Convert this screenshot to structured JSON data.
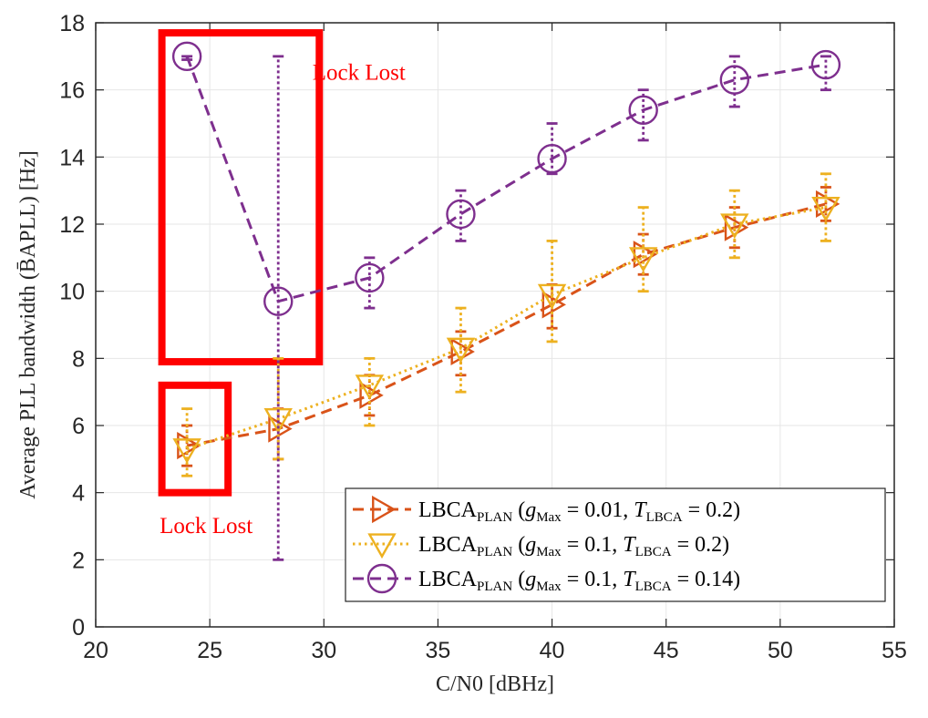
{
  "chart_data": {
    "type": "line",
    "xlabel": "C/N0 [dBHz]",
    "ylabel": "Average PLL bandwidth (B̄APLL) [Hz]",
    "xlim": [
      20,
      55
    ],
    "ylim": [
      0,
      18
    ],
    "xticks": [
      20,
      25,
      30,
      35,
      40,
      45,
      50,
      55
    ],
    "yticks": [
      0,
      2,
      4,
      6,
      8,
      10,
      12,
      14,
      16,
      18
    ],
    "grid": true,
    "legend_position": "bottom-right",
    "series": [
      {
        "name": "LBCA_PLAN (g_Max = 0.01, T_LBCA = 0.2)",
        "legend": {
          "base": "LBCA",
          "sub": "PLAN",
          "g": "g",
          "gsub": "Max",
          "gval": " = 0.01, ",
          "t": "T",
          "tsub": "LBCA",
          "tval": " = 0.2)"
        },
        "color": "#D95319",
        "marker": "triangle-right",
        "linestyle": "dashed",
        "x": [
          24,
          28,
          32,
          36,
          40,
          44,
          48,
          52
        ],
        "y": [
          5.4,
          5.9,
          6.9,
          8.2,
          9.6,
          11.1,
          11.9,
          12.6
        ],
        "err_low": [
          4.8,
          5.0,
          6.3,
          7.5,
          8.9,
          10.5,
          11.3,
          12.1
        ],
        "err_high": [
          6.0,
          6.5,
          7.5,
          8.8,
          10.2,
          11.7,
          12.5,
          13.1
        ]
      },
      {
        "name": "LBCA_PLAN (g_Max = 0.1, T_LBCA = 0.2)",
        "legend": {
          "base": "LBCA",
          "sub": "PLAN",
          "g": "g",
          "gsub": "Max",
          "gval": " = 0.1, ",
          "t": "T",
          "tsub": "LBCA",
          "tval": " = 0.2)"
        },
        "color": "#EDB120",
        "marker": "triangle-down",
        "linestyle": "dotted",
        "x": [
          24,
          28,
          32,
          36,
          40,
          44,
          48,
          52
        ],
        "y": [
          5.3,
          6.2,
          7.2,
          8.3,
          9.9,
          11.0,
          12.0,
          12.5
        ],
        "err_low": [
          4.5,
          5.0,
          6.0,
          7.0,
          8.5,
          10.0,
          11.0,
          11.5
        ],
        "err_high": [
          6.5,
          8.0,
          8.0,
          9.5,
          11.5,
          12.5,
          13.0,
          13.5
        ]
      },
      {
        "name": "LBCA_PLAN (g_Max = 0.1, T_LBCA = 0.14)",
        "legend": {
          "base": "LBCA",
          "sub": "PLAN",
          "g": "g",
          "gsub": "Max",
          "gval": " = 0.1, ",
          "t": "T",
          "tsub": "LBCA",
          "tval": " = 0.14)"
        },
        "color": "#7E2F8E",
        "marker": "circle",
        "linestyle": "dashed",
        "x": [
          24,
          28,
          32,
          36,
          40,
          44,
          48,
          52
        ],
        "y": [
          17.0,
          9.7,
          10.4,
          12.3,
          13.95,
          15.4,
          16.3,
          16.75
        ],
        "err_low": [
          16.9,
          2.0,
          9.5,
          11.5,
          13.5,
          14.5,
          15.5,
          16.0
        ],
        "err_high": [
          17.0,
          17.0,
          11.0,
          13.0,
          15.0,
          16.0,
          17.0,
          17.0
        ]
      }
    ],
    "annotations": [
      {
        "text": "Lock Lost",
        "color": "#FF0000",
        "x": 29.5,
        "y": 16.3
      },
      {
        "text": "Lock Lost",
        "color": "#FF0000",
        "x": 22.8,
        "y": 2.8
      }
    ],
    "highlight_boxes": [
      {
        "x0": 22.9,
        "x1": 29.8,
        "y0": 7.9,
        "y1": 17.7,
        "color": "#FF0000"
      },
      {
        "x0": 22.9,
        "x1": 25.8,
        "y0": 4.0,
        "y1": 7.2,
        "color": "#FF0000"
      }
    ]
  }
}
